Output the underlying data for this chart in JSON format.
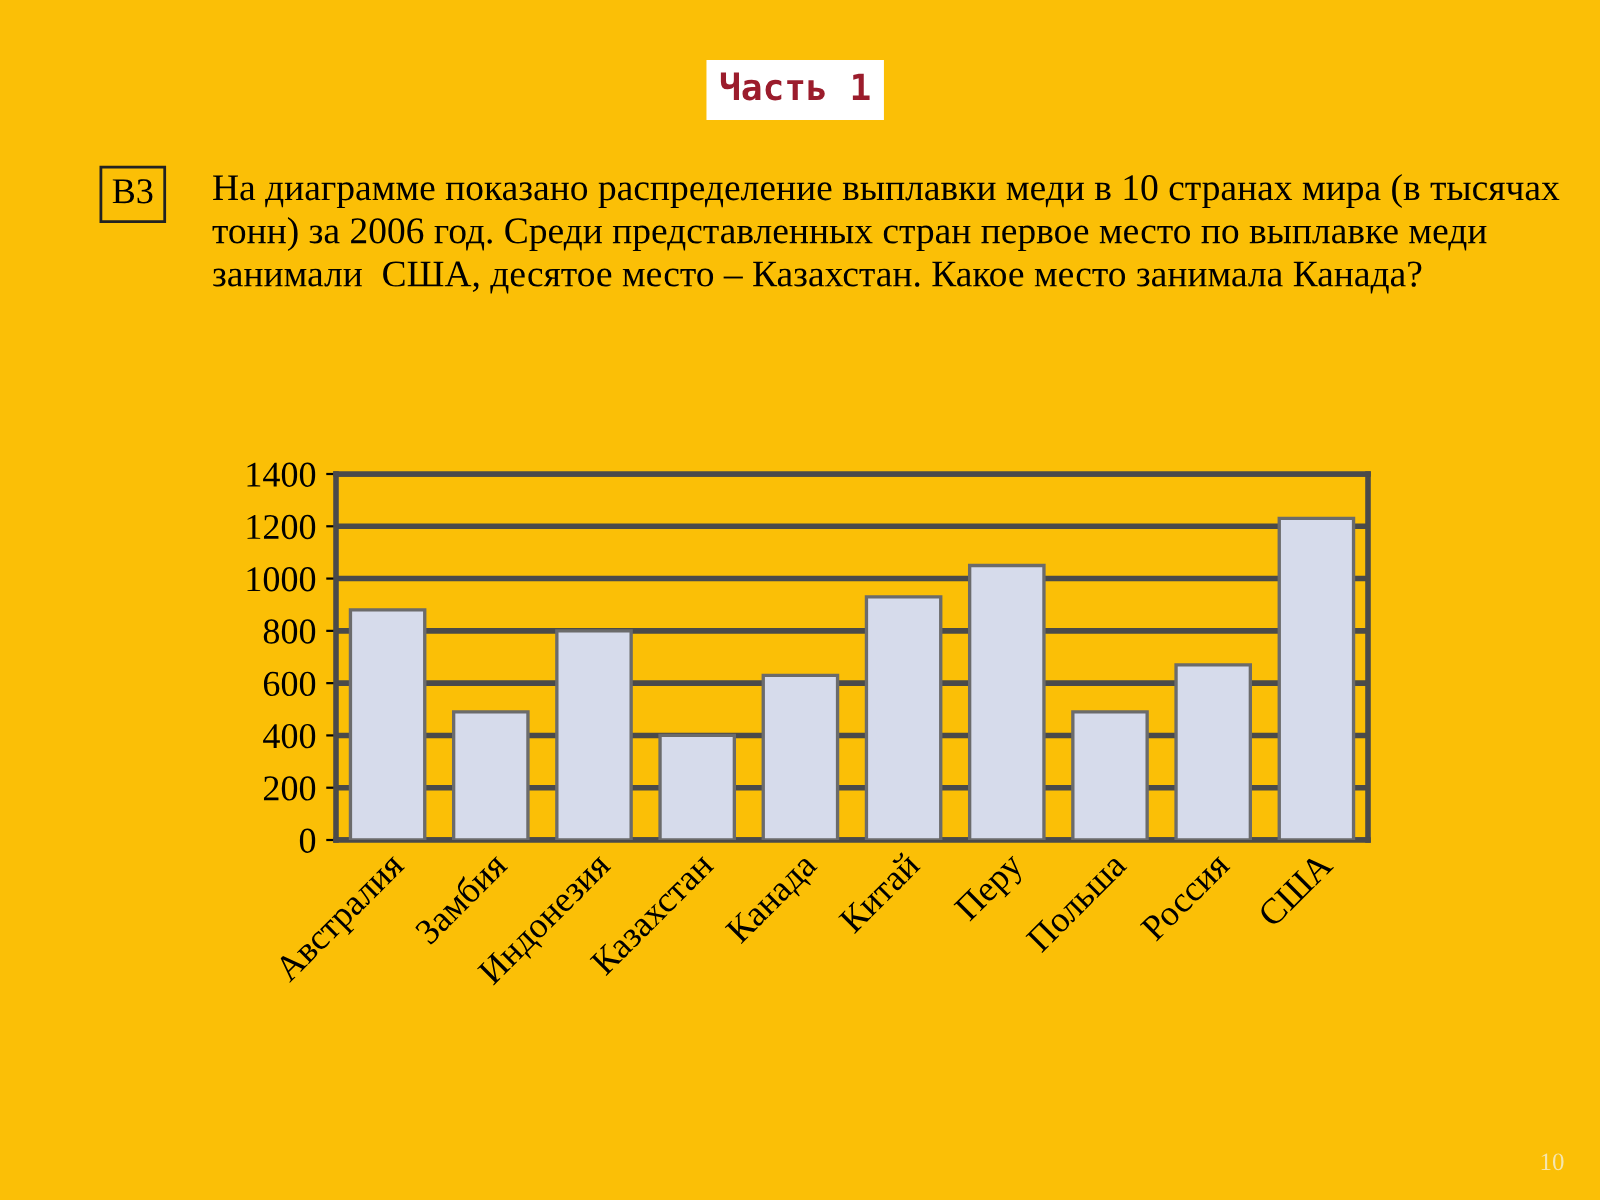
{
  "chart_data": {
    "type": "bar",
    "title": "На диаграмме показано распределение выплавки меди в 10 странах мира (в тысячах тонн) за 2006 год. Среди представленных стран первое место по выплавке меди  занимали  США, десятое место – Казахстан. Какое место занимала Канада?",
    "categories": [
      "Австралия",
      "Замбия",
      "Индонезия",
      "Казахстан",
      "Канада",
      "Китай",
      "Перу",
      "Польша",
      "Россия",
      "США"
    ],
    "values": [
      880,
      490,
      800,
      400,
      630,
      930,
      1050,
      490,
      670,
      1230
    ],
    "color": "#d6dbeb",
    "ylim": [
      0,
      1400
    ],
    "yticks": [
      0,
      200,
      400,
      600,
      800,
      1000,
      1200,
      1400
    ],
    "grid": "y",
    "legend": false,
    "annotations": [
      "Часть 1",
      "В3",
      "10"
    ]
  }
}
